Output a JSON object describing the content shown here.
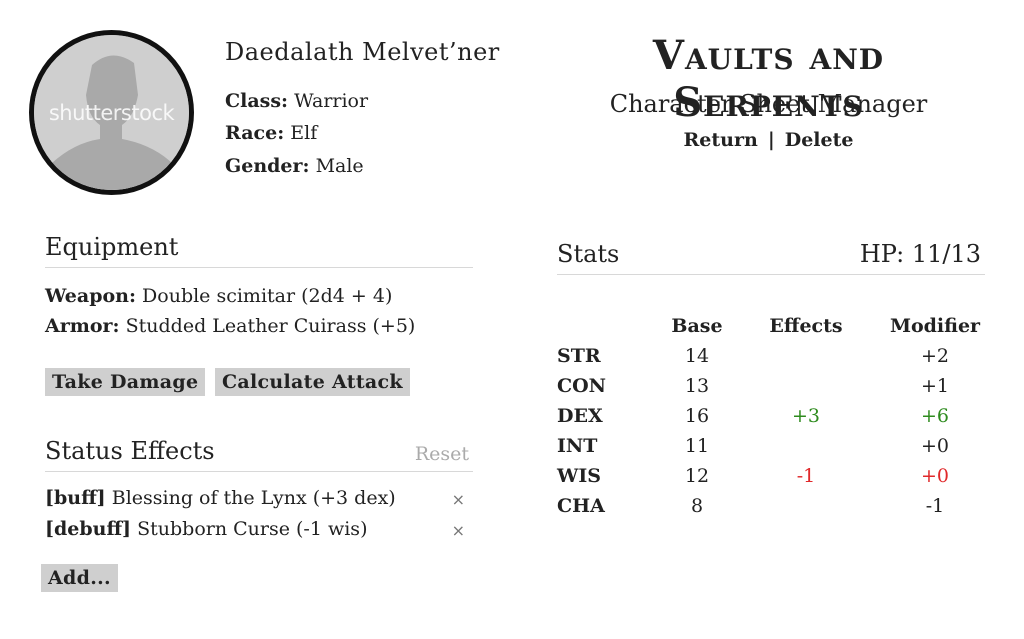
{
  "avatar": {
    "watermark": "shutterstock"
  },
  "character": {
    "name": "Daedalath Melvet’ner",
    "class_label": "Class:",
    "class": "Warrior",
    "race_label": "Race:",
    "race": "Elf",
    "gender_label": "Gender:",
    "gender": "Male"
  },
  "app": {
    "title": "Vaults and Serpents",
    "subtitle": "Character Sheet Manager",
    "nav": {
      "return": "Return",
      "separator": "|",
      "delete": "Delete"
    }
  },
  "equipment": {
    "heading": "Equipment",
    "weapon_label": "Weapon:",
    "weapon": "Double scimitar (2d4 + 4)",
    "armor_label": "Armor:",
    "armor": "Studded Leather Cuirass (+5)",
    "take_damage": "Take Damage",
    "calculate_attack": "Calculate Attack"
  },
  "status_effects": {
    "heading": "Status Effects",
    "reset": "Reset",
    "items": [
      {
        "tag": "[buff]",
        "text": "Blessing of the Lynx (+3 dex)",
        "remove": "×"
      },
      {
        "tag": "[debuff]",
        "text": "Stubborn Curse (-1 wis)",
        "remove": "×"
      }
    ],
    "add": "Add..."
  },
  "stats": {
    "heading": "Stats",
    "hp_label": "HP:",
    "hp": "11/13",
    "columns": [
      "",
      "Base",
      "Effects",
      "Modifier"
    ],
    "rows": [
      {
        "name": "STR",
        "base": "14",
        "effect": "",
        "modifier": "+2"
      },
      {
        "name": "CON",
        "base": "13",
        "effect": "",
        "modifier": "+1"
      },
      {
        "name": "DEX",
        "base": "16",
        "effect": "+3",
        "modifier": "+6"
      },
      {
        "name": "INT",
        "base": "11",
        "effect": "",
        "modifier": "+0"
      },
      {
        "name": "WIS",
        "base": "12",
        "effect": "-1",
        "modifier": "+0"
      },
      {
        "name": "CHA",
        "base": "8",
        "effect": "",
        "modifier": "-1"
      }
    ]
  },
  "colors": {
    "positive": "#2e8b1e",
    "negative": "#e0282a",
    "button_bg": "#cfcfcf"
  }
}
